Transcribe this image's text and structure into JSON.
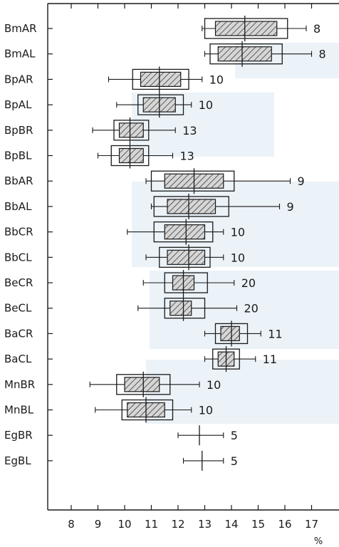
{
  "chart_data": {
    "type": "boxplot",
    "title": "",
    "xlabel": "%",
    "ylabel": "",
    "xlim": [
      7.4,
      17.4
    ],
    "x_ticks": [
      8,
      9,
      10,
      11,
      12,
      13,
      14,
      15,
      16,
      17
    ],
    "grid": false,
    "rows": [
      {
        "label": "BmAR",
        "mean": 14.5,
        "outer": [
          13.0,
          16.1
        ],
        "inner": [
          13.4,
          15.7
        ],
        "whisker": [
          12.9,
          16.8
        ],
        "n": "8"
      },
      {
        "label": "BmAL",
        "mean": 14.4,
        "outer": [
          13.2,
          15.9
        ],
        "inner": [
          13.5,
          15.5
        ],
        "whisker": [
          13.0,
          17.0
        ],
        "n": "8"
      },
      {
        "label": "BpAR",
        "mean": 11.3,
        "outer": [
          10.3,
          12.4
        ],
        "inner": [
          10.6,
          12.1
        ],
        "whisker": [
          9.4,
          12.9
        ],
        "n": "10"
      },
      {
        "label": "BpAL",
        "mean": 11.3,
        "outer": [
          10.5,
          12.2
        ],
        "inner": [
          10.7,
          11.9
        ],
        "whisker": [
          9.7,
          12.5
        ],
        "n": "10"
      },
      {
        "label": "BpBR",
        "mean": 10.2,
        "outer": [
          9.6,
          10.9
        ],
        "inner": [
          9.8,
          10.7
        ],
        "whisker": [
          8.8,
          11.9
        ],
        "n": "13"
      },
      {
        "label": "BpBL",
        "mean": 10.2,
        "outer": [
          9.5,
          10.9
        ],
        "inner": [
          9.8,
          10.7
        ],
        "whisker": [
          9.0,
          11.8
        ],
        "n": "13"
      },
      {
        "label": "BbAR",
        "mean": 12.6,
        "outer": [
          11.0,
          14.1
        ],
        "inner": [
          11.5,
          13.7
        ],
        "whisker": [
          10.8,
          16.2
        ],
        "n": "9"
      },
      {
        "label": "BbAL",
        "mean": 12.4,
        "outer": [
          11.1,
          13.9
        ],
        "inner": [
          11.6,
          13.4
        ],
        "whisker": [
          11.0,
          15.8
        ],
        "n": "9"
      },
      {
        "label": "BbCR",
        "mean": 12.3,
        "outer": [
          11.1,
          13.3
        ],
        "inner": [
          11.5,
          13.0
        ],
        "whisker": [
          10.1,
          13.7
        ],
        "n": "10"
      },
      {
        "label": "BbCL",
        "mean": 12.4,
        "outer": [
          11.3,
          13.2
        ],
        "inner": [
          11.6,
          13.0
        ],
        "whisker": [
          10.8,
          13.7
        ],
        "n": "10"
      },
      {
        "label": "BeCR",
        "mean": 12.2,
        "outer": [
          11.5,
          13.1
        ],
        "inner": [
          11.8,
          12.6
        ],
        "whisker": [
          10.7,
          14.1
        ],
        "n": "20"
      },
      {
        "label": "BeCL",
        "mean": 12.2,
        "outer": [
          11.5,
          13.0
        ],
        "inner": [
          11.7,
          12.5
        ],
        "whisker": [
          10.5,
          14.2
        ],
        "n": "20"
      },
      {
        "label": "BaCR",
        "mean": 14.0,
        "outer": [
          13.4,
          14.6
        ],
        "inner": [
          13.6,
          14.3
        ],
        "whisker": [
          13.0,
          15.1
        ],
        "n": "11"
      },
      {
        "label": "BaCL",
        "mean": 13.8,
        "outer": [
          13.3,
          14.3
        ],
        "inner": [
          13.5,
          14.1
        ],
        "whisker": [
          13.0,
          14.9
        ],
        "n": "11"
      },
      {
        "label": "MnBR",
        "mean": 10.7,
        "outer": [
          9.7,
          11.7
        ],
        "inner": [
          10.0,
          11.3
        ],
        "whisker": [
          8.7,
          12.8
        ],
        "n": "10"
      },
      {
        "label": "MnBL",
        "mean": 10.8,
        "outer": [
          9.9,
          11.8
        ],
        "inner": [
          10.1,
          11.5
        ],
        "whisker": [
          8.9,
          12.5
        ],
        "n": "10"
      },
      {
        "label": "EgBR",
        "mean": 12.8,
        "whisker": [
          12.0,
          13.7
        ],
        "n": "5"
      },
      {
        "label": "EgBL",
        "mean": 12.9,
        "whisker": [
          12.2,
          13.7
        ],
        "n": "5"
      }
    ]
  },
  "colors": {
    "ink": "#1a1a1a",
    "hatch_fill": "#d6d6d6",
    "hatch_line": "#3a3a3a",
    "watermark": "#dbe8f2"
  }
}
